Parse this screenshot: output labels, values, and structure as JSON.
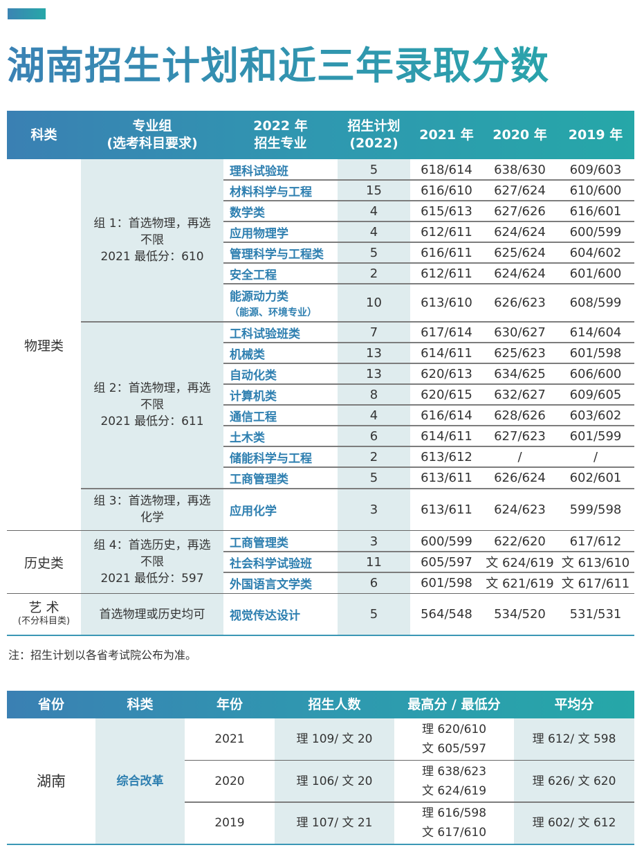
{
  "header": {
    "title": "湖南招生计划和近三年录取分数"
  },
  "plan_table": {
    "columns": {
      "category": "科类",
      "group_line1": "专业组",
      "group_line2": "(选考科目要求)",
      "major_line1": "2022 年",
      "major_line2": "招生专业",
      "plan_line1": "招生计划",
      "plan_line2": "(2022)",
      "y2021": "2021 年",
      "y2020": "2020 年",
      "y2019": "2019 年"
    },
    "categories": [
      {
        "label": "物理类"
      },
      {
        "label": "历史类"
      },
      {
        "label": "艺 术",
        "sub": "(不分科目类)"
      }
    ],
    "groups": [
      {
        "line1": "组 1：首选物理，再选",
        "line2": "不限",
        "line3": "2021 最低分：610"
      },
      {
        "line1": "组 2：首选物理，再选",
        "line2": "不限",
        "line3": "2021 最低分：611"
      },
      {
        "line1": "组 3：首选物理，再选",
        "line2": "化学",
        "line3": ""
      },
      {
        "line1": "组 4：首选历史，再选",
        "line2": "不限",
        "line3": "2021 最低分：597"
      },
      {
        "line1": "首选物理或历史均可",
        "line2": "",
        "line3": ""
      }
    ],
    "rows": [
      {
        "major": "理科试验班",
        "sub": "",
        "plan": "5",
        "y2021": "618/614",
        "y2020": "638/630",
        "y2019": "609/603"
      },
      {
        "major": "材料科学与工程",
        "sub": "",
        "plan": "15",
        "y2021": "616/610",
        "y2020": "627/624",
        "y2019": "610/600"
      },
      {
        "major": "数学类",
        "sub": "",
        "plan": "4",
        "y2021": "615/613",
        "y2020": "627/626",
        "y2019": "616/601"
      },
      {
        "major": "应用物理学",
        "sub": "",
        "plan": "4",
        "y2021": "612/611",
        "y2020": "624/624",
        "y2019": "600/599"
      },
      {
        "major": "管理科学与工程类",
        "sub": "",
        "plan": "5",
        "y2021": "616/611",
        "y2020": "625/624",
        "y2019": "604/602"
      },
      {
        "major": "安全工程",
        "sub": "",
        "plan": "2",
        "y2021": "612/611",
        "y2020": "624/624",
        "y2019": "601/600"
      },
      {
        "major": "能源动力类",
        "sub": "（能源、环境专业）",
        "plan": "10",
        "y2021": "613/610",
        "y2020": "626/623",
        "y2019": "608/599"
      },
      {
        "major": "工科试验班类",
        "sub": "",
        "plan": "7",
        "y2021": "617/614",
        "y2020": "630/627",
        "y2019": "614/604"
      },
      {
        "major": "机械类",
        "sub": "",
        "plan": "13",
        "y2021": "614/611",
        "y2020": "625/623",
        "y2019": "601/598"
      },
      {
        "major": "自动化类",
        "sub": "",
        "plan": "13",
        "y2021": "620/613",
        "y2020": "634/625",
        "y2019": "606/600"
      },
      {
        "major": "计算机类",
        "sub": "",
        "plan": "8",
        "y2021": "620/615",
        "y2020": "632/627",
        "y2019": "609/605"
      },
      {
        "major": "通信工程",
        "sub": "",
        "plan": "4",
        "y2021": "616/614",
        "y2020": "628/626",
        "y2019": "603/602"
      },
      {
        "major": "土木类",
        "sub": "",
        "plan": "6",
        "y2021": "614/611",
        "y2020": "627/623",
        "y2019": "601/599"
      },
      {
        "major": "储能科学与工程",
        "sub": "",
        "plan": "2",
        "y2021": "613/612",
        "y2020": "/",
        "y2019": "/"
      },
      {
        "major": "工商管理类",
        "sub": "",
        "plan": "5",
        "y2021": "613/611",
        "y2020": "626/624",
        "y2019": "602/601"
      },
      {
        "major": "应用化学",
        "sub": "",
        "plan": "3",
        "y2021": "613/611",
        "y2020": "624/623",
        "y2019": "599/598"
      },
      {
        "major": "工商管理类",
        "sub": "",
        "plan": "3",
        "y2021": "600/599",
        "y2020": "622/620",
        "y2019": "617/612"
      },
      {
        "major": "社会科学试验班",
        "sub": "",
        "plan": "11",
        "y2021": "605/597",
        "y2020": "文 624/619",
        "y2019": "文 613/610"
      },
      {
        "major": "外国语言文学类",
        "sub": "",
        "plan": "6",
        "y2021": "601/598",
        "y2020": "文 621/619",
        "y2019": "文 617/611"
      },
      {
        "major": "视觉传达设计",
        "sub": "",
        "plan": "5",
        "y2021": "564/548",
        "y2020": "534/520",
        "y2019": "531/531"
      }
    ],
    "note": "注：招生计划以各省考试院公布为准。"
  },
  "history_table": {
    "columns": [
      "省份",
      "科类",
      "年份",
      "招生人数",
      "最高分 / 最低分",
      "平均分"
    ],
    "province": "湖南",
    "category": "综合改革",
    "rows": [
      {
        "year": "2021",
        "enrolled": "理 109/ 文 20",
        "max_min_1": "理 620/610",
        "max_min_2": "文 605/597",
        "avg": "理 612/ 文 598"
      },
      {
        "year": "2020",
        "enrolled": "理 106/ 文 20",
        "max_min_1": "理 638/623",
        "max_min_2": "文 624/619",
        "avg": "理 626/ 文 620"
      },
      {
        "year": "2019",
        "enrolled": "理 107/ 文 21",
        "max_min_1": "理 616/598",
        "max_min_2": "文 617/610",
        "avg": "理 602/ 文 612"
      }
    ]
  }
}
